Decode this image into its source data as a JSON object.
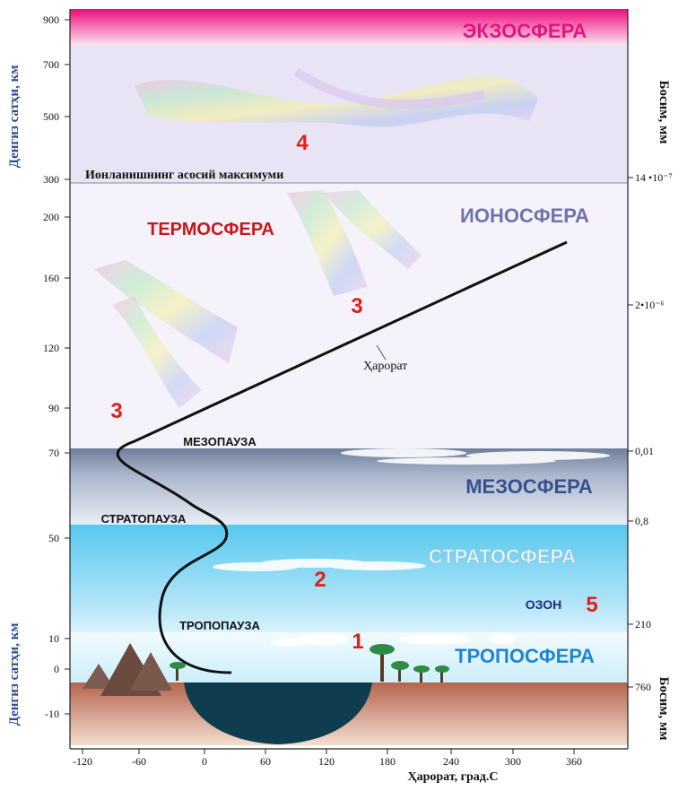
{
  "diagram": {
    "layers": {
      "exosphere": "ЭКЗОСФЕРА",
      "thermosphere": "ТЕРМОСФЕРА",
      "ionosphere": "ИОНОСФЕРА",
      "mesosphere": "МЕЗОСФЕРА",
      "stratosphere": "СТРАТОСФЕРА",
      "troposphere": "ТРОПОСФЕРА"
    },
    "boundaries": {
      "mesopause": "МЕЗОПАУЗА",
      "stratopause": "СТРАТОПАУЗА",
      "tropopause": "ТРОПОПАУЗА"
    },
    "ionization_note": "Ионланишнинг асосий максимуми",
    "temperature_curve_label": "Ҳарорат",
    "ozone_label": "ОЗОН",
    "markers": [
      "4",
      "3",
      "3",
      "2",
      "1",
      "5"
    ],
    "colors": {
      "exosphere_top": "#ee0a7a",
      "exosphere_bottom": "#fbe0ee",
      "exosphere_text": "#e0157f",
      "marker_red": "#e0201a",
      "ionosphere_text": "#6e74aa",
      "mesosphere_text": "#3a4f8e",
      "stratosphere_text": "#e9f6ff",
      "stratosphere_bg": "#56c8ef",
      "troposphere_text": "#1f85d6",
      "ground": "#b86e55",
      "lake": "#0f3c4e",
      "axis_blue": "#2b4a9a"
    }
  },
  "axes": {
    "left_upper_label": "Денгиз сатҳи, км",
    "left_lower_label": "Денгиз сатҳи, км",
    "right_upper_label": "Босим, мм",
    "right_lower_label": "Босим, мм",
    "x_label": "Ҳарорат, град.С",
    "left_ticks": [
      "900",
      "700",
      "500",
      "300",
      "200",
      "160",
      "120",
      "90",
      "70",
      "50",
      "10",
      "0",
      "-10"
    ],
    "right_ticks": [
      "14 •10⁻⁷",
      "2•10⁻⁶",
      "0,01",
      "0,8",
      "210",
      "760"
    ],
    "x_ticks": [
      "-120",
      "-60",
      "0",
      "60",
      "120",
      "180",
      "240",
      "300",
      "360"
    ]
  }
}
